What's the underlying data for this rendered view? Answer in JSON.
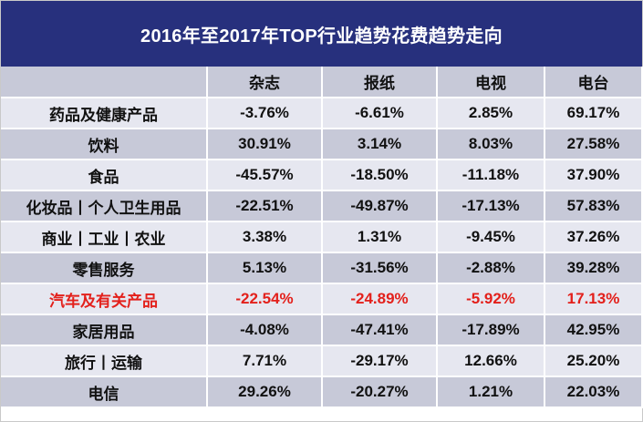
{
  "title": "2016年至2017年TOP行业趋势花费趋势走向",
  "columns": [
    "",
    "杂志",
    "报纸",
    "电视",
    "电台"
  ],
  "rows": [
    {
      "label": "药品及健康产品",
      "values": [
        "-3.76%",
        "-6.61%",
        "2.85%",
        "69.17%"
      ],
      "highlight": false
    },
    {
      "label": "饮料",
      "values": [
        "30.91%",
        "3.14%",
        "8.03%",
        "27.58%"
      ],
      "highlight": false
    },
    {
      "label": "食品",
      "values": [
        "-45.57%",
        "-18.50%",
        "-11.18%",
        "37.90%"
      ],
      "highlight": false
    },
    {
      "label": "化妆品丨个人卫生用品",
      "values": [
        "-22.51%",
        "-49.87%",
        "-17.13%",
        "57.83%"
      ],
      "highlight": false
    },
    {
      "label": "商业丨工业丨农业",
      "values": [
        "3.38%",
        "1.31%",
        "-9.45%",
        "37.26%"
      ],
      "highlight": false
    },
    {
      "label": "零售服务",
      "values": [
        "5.13%",
        "-31.56%",
        "-2.88%",
        "39.28%"
      ],
      "highlight": false
    },
    {
      "label": "汽车及有关产品",
      "values": [
        "-22.54%",
        "-24.89%",
        "-5.92%",
        "17.13%"
      ],
      "highlight": true
    },
    {
      "label": "家居用品",
      "values": [
        "-4.08%",
        "-47.41%",
        "-17.89%",
        "42.95%"
      ],
      "highlight": false
    },
    {
      "label": "旅行丨运输",
      "values": [
        "7.71%",
        "-29.17%",
        "12.66%",
        "25.20%"
      ],
      "highlight": false
    },
    {
      "label": "电信",
      "values": [
        "29.26%",
        "-20.27%",
        "1.21%",
        "22.03%"
      ],
      "highlight": false
    }
  ],
  "colors": {
    "title_background": "#27307d",
    "title_text": "#ffffff",
    "row_light": "#e6e7f0",
    "row_dark": "#c7c9d8",
    "highlight_text": "#e3201b"
  }
}
